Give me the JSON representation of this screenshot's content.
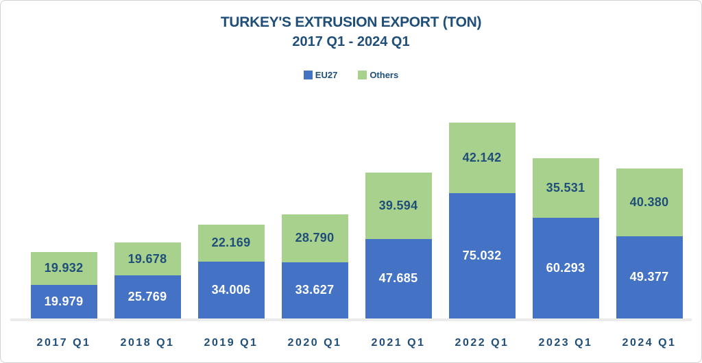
{
  "header": {
    "title": "TURKEY'S EXTRUSION EXPORT (TON)",
    "subtitle": "2017 Q1 - 2024 Q1"
  },
  "legend": {
    "items": [
      {
        "label": "EU27",
        "color": "#4472C4"
      },
      {
        "label": "Others",
        "color": "#A9D18E"
      }
    ]
  },
  "colors": {
    "title_text": "#1F4E79",
    "axis_label_text": "#1F4E79",
    "eu27_bar": "#4472C4",
    "others_bar": "#A9D18E",
    "value_label_on_blue": "#FFFFFF",
    "value_label_on_green": "#1F4E79",
    "baseline": "#EBEBEB"
  },
  "chart_data": {
    "type": "bar",
    "stacked": true,
    "title": "TURKEY'S EXTRUSION EXPORT (TON)",
    "subtitle": "2017 Q1 - 2024 Q1",
    "xlabel": "",
    "ylabel": "",
    "grid": false,
    "legend_position": "top",
    "categories": [
      "2017 Q1",
      "2018 Q1",
      "2019 Q1",
      "2020 Q1",
      "2021 Q1",
      "2022 Q1",
      "2023 Q1",
      "2024 Q1"
    ],
    "series": [
      {
        "name": "EU27",
        "color": "#4472C4",
        "label_color": "#FFFFFF",
        "values": [
          19979,
          25769,
          34006,
          33627,
          47685,
          75032,
          60293,
          49377
        ],
        "labels": [
          "19.979",
          "25.769",
          "34.006",
          "33.627",
          "47.685",
          "75.032",
          "60.293",
          "49.377"
        ]
      },
      {
        "name": "Others",
        "color": "#A9D18E",
        "label_color": "#1F4E79",
        "values": [
          19932,
          19678,
          22169,
          28790,
          39594,
          42142,
          35531,
          40380
        ],
        "labels": [
          "19.932",
          "19.678",
          "22.169",
          "28.790",
          "39.594",
          "42.142",
          "35.531",
          "40.380"
        ]
      }
    ]
  }
}
